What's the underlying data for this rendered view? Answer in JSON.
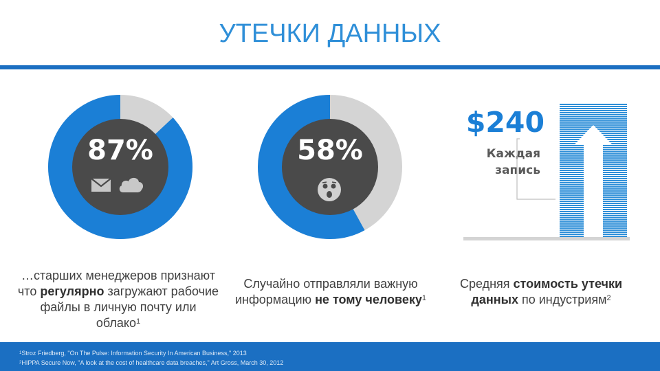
{
  "title": "УТЕЧКИ ДАННЫХ",
  "colors": {
    "accent": "#1b7fd6",
    "rule": "#1b6fc2",
    "donut_track": "#d4d4d4",
    "donut_center": "#4a4a4a"
  },
  "stats": [
    {
      "value_label": "87%",
      "percent": 87,
      "icons": [
        "mail-icon",
        "cloud-icon"
      ],
      "caption": {
        "part1": "…старших менеджеров признают что ",
        "bold": "регулярно",
        "part2": " загружают рабочие файлы в личную почту или облако",
        "sup": "1"
      }
    },
    {
      "value_label": "58%",
      "percent": 58,
      "icons": [
        "shocked-face-icon"
      ],
      "caption": {
        "part1": "Случайно отправляли важную информацию ",
        "bold": "не тому человеку",
        "sup": "1"
      }
    },
    {
      "price": "$240",
      "price_label_line1": "Каждая",
      "price_label_line2": "запись",
      "icons": [
        "up-arrow-icon"
      ],
      "caption": {
        "part1": "Средняя ",
        "bold1": "стоимость утечки данных",
        "part2": " по индустриям",
        "sup": "2"
      }
    }
  ],
  "footnotes": [
    {
      "num": "1",
      "text": "Stroz Friedberg, \"On The Pulse: Information Security In American Business,\" 2013"
    },
    {
      "num": "2",
      "text": "HIPPA Secure Now, \"A look at the cost of healthcare data breaches,\" Art Gross, March 30, 2012"
    }
  ]
}
